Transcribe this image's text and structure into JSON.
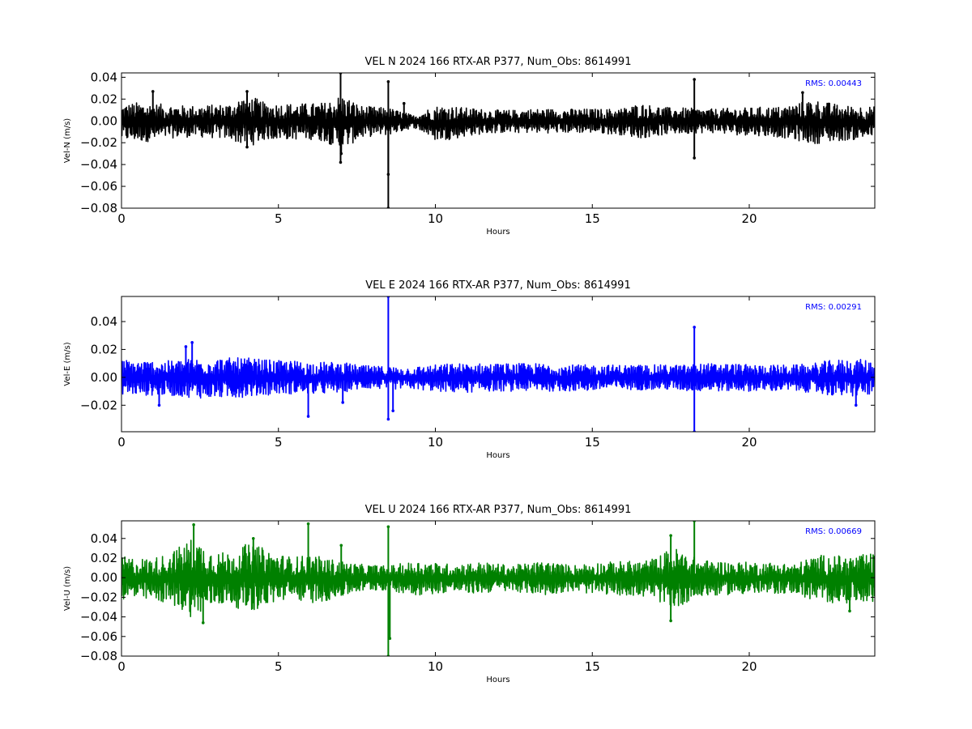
{
  "chart_data": [
    {
      "type": "line",
      "title": "VEL N 2024 166 RTX-AR  P377, Num_Obs: 8614991",
      "xlabel": "Hours",
      "ylabel": "Vel-N (m/s)",
      "color": "#000000",
      "xlim": [
        0,
        24
      ],
      "ylim": [
        -0.08,
        0.044
      ],
      "xticks": [
        0,
        5,
        10,
        15,
        20
      ],
      "xtick_labels": [
        "0",
        "5",
        "10",
        "15",
        "20"
      ],
      "yticks": [
        -0.08,
        -0.06,
        -0.04,
        -0.02,
        0.0,
        0.02,
        0.04
      ],
      "ytick_labels": [
        "−0.08",
        "−0.06",
        "−0.04",
        "−0.02",
        "0.00",
        "0.02",
        "0.04"
      ],
      "annotation": "RMS:  0.00443",
      "annotation_color": "#0000ff",
      "grid": false,
      "series": [
        {
          "color": "#000000",
          "envelope": {
            "x": [
              0,
              0.5,
              1,
              1.5,
              2,
              2.5,
              3,
              3.5,
              3.8,
              4.2,
              4.6,
              5,
              5.5,
              6,
              6.5,
              7,
              7.3,
              7.6,
              8,
              8.5,
              9,
              9.3,
              9.5,
              10,
              10.5,
              11,
              11.5,
              12,
              12.5,
              13,
              13.5,
              14,
              14.5,
              15,
              15.5,
              16,
              16.5,
              17,
              17.5,
              18,
              18.5,
              19,
              19.5,
              20,
              20.5,
              21,
              21.5,
              22,
              22.5,
              23,
              23.5,
              24
            ],
            "upper": [
              0.015,
              0.017,
              0.016,
              0.015,
              0.014,
              0.014,
              0.015,
              0.016,
              0.022,
              0.022,
              0.016,
              0.016,
              0.016,
              0.016,
              0.017,
              0.024,
              0.02,
              0.014,
              0.013,
              0.012,
              0.008,
              0.005,
              0.008,
              0.014,
              0.014,
              0.012,
              0.011,
              0.01,
              0.01,
              0.011,
              0.011,
              0.011,
              0.011,
              0.011,
              0.011,
              0.012,
              0.016,
              0.014,
              0.012,
              0.012,
              0.011,
              0.011,
              0.012,
              0.012,
              0.013,
              0.013,
              0.016,
              0.02,
              0.017,
              0.014,
              0.014,
              0.013
            ],
            "lower": [
              -0.018,
              -0.019,
              -0.019,
              -0.016,
              -0.015,
              -0.015,
              -0.016,
              -0.017,
              -0.022,
              -0.022,
              -0.017,
              -0.017,
              -0.017,
              -0.017,
              -0.019,
              -0.027,
              -0.022,
              -0.016,
              -0.014,
              -0.013,
              -0.009,
              -0.006,
              -0.009,
              -0.018,
              -0.017,
              -0.014,
              -0.012,
              -0.011,
              -0.011,
              -0.011,
              -0.011,
              -0.011,
              -0.011,
              -0.011,
              -0.012,
              -0.013,
              -0.016,
              -0.014,
              -0.012,
              -0.012,
              -0.011,
              -0.011,
              -0.013,
              -0.013,
              -0.014,
              -0.015,
              -0.018,
              -0.021,
              -0.02,
              -0.018,
              -0.017,
              -0.015
            ]
          },
          "spikes": [
            {
              "x": 6.98,
              "y": 0.044
            },
            {
              "x": 6.98,
              "y": -0.038
            },
            {
              "x": 8.5,
              "y": 0.036
            },
            {
              "x": 8.5,
              "y": -0.049
            },
            {
              "x": 8.5,
              "y": -0.08
            },
            {
              "x": 9.0,
              "y": 0.016
            },
            {
              "x": 4.0,
              "y": 0.027
            },
            {
              "x": 4.0,
              "y": -0.024
            },
            {
              "x": 7.0,
              "y": -0.03
            },
            {
              "x": 18.25,
              "y": 0.038
            },
            {
              "x": 18.25,
              "y": -0.034
            },
            {
              "x": 21.7,
              "y": 0.026
            },
            {
              "x": 1.0,
              "y": 0.027
            }
          ]
        }
      ]
    },
    {
      "type": "line",
      "title": "VEL E 2024 166 RTX-AR  P377, Num_Obs: 8614991",
      "xlabel": "Hours",
      "ylabel": "Vel-E (m/s)",
      "color": "#0000ff",
      "xlim": [
        0,
        24
      ],
      "ylim": [
        -0.039,
        0.058
      ],
      "xticks": [
        0,
        5,
        10,
        15,
        20
      ],
      "xtick_labels": [
        "0",
        "5",
        "10",
        "15",
        "20"
      ],
      "yticks": [
        -0.02,
        0.0,
        0.02,
        0.04
      ],
      "ytick_labels": [
        "−0.02",
        "0.00",
        "0.02",
        "0.04"
      ],
      "annotation": "RMS:  0.00291",
      "annotation_color": "#0000ff",
      "grid": false,
      "series": [
        {
          "color": "#0000ff",
          "envelope": {
            "x": [
              0,
              0.5,
              1,
              1.5,
              2,
              2.5,
              3,
              3.5,
              4,
              4.5,
              5,
              5.5,
              6,
              6.5,
              7,
              7.5,
              8,
              8.5,
              9,
              9.5,
              10,
              10.5,
              11,
              11.5,
              12,
              12.5,
              13,
              13.5,
              14,
              14.5,
              15,
              15.5,
              16,
              16.5,
              17,
              17.5,
              18,
              18.5,
              19,
              19.5,
              20,
              20.5,
              21,
              21.5,
              22,
              22.5,
              23,
              23.5,
              24
            ],
            "upper": [
              0.013,
              0.012,
              0.012,
              0.012,
              0.013,
              0.014,
              0.014,
              0.014,
              0.014,
              0.013,
              0.012,
              0.012,
              0.011,
              0.011,
              0.011,
              0.009,
              0.008,
              0.008,
              0.007,
              0.008,
              0.009,
              0.01,
              0.01,
              0.01,
              0.01,
              0.01,
              0.01,
              0.01,
              0.009,
              0.009,
              0.009,
              0.009,
              0.009,
              0.009,
              0.009,
              0.009,
              0.009,
              0.01,
              0.01,
              0.01,
              0.009,
              0.009,
              0.009,
              0.009,
              0.01,
              0.012,
              0.013,
              0.013,
              0.012
            ],
            "lower": [
              -0.012,
              -0.013,
              -0.013,
              -0.013,
              -0.014,
              -0.015,
              -0.015,
              -0.015,
              -0.014,
              -0.013,
              -0.012,
              -0.012,
              -0.012,
              -0.012,
              -0.011,
              -0.009,
              -0.008,
              -0.009,
              -0.008,
              -0.009,
              -0.01,
              -0.011,
              -0.011,
              -0.01,
              -0.01,
              -0.01,
              -0.01,
              -0.01,
              -0.01,
              -0.01,
              -0.01,
              -0.009,
              -0.009,
              -0.009,
              -0.009,
              -0.009,
              -0.01,
              -0.01,
              -0.01,
              -0.01,
              -0.01,
              -0.01,
              -0.01,
              -0.01,
              -0.011,
              -0.013,
              -0.014,
              -0.014,
              -0.012
            ]
          },
          "spikes": [
            {
              "x": 8.5,
              "y": 0.058
            },
            {
              "x": 8.5,
              "y": -0.03
            },
            {
              "x": 8.65,
              "y": -0.024
            },
            {
              "x": 5.95,
              "y": -0.028
            },
            {
              "x": 2.25,
              "y": 0.025
            },
            {
              "x": 2.05,
              "y": 0.022
            },
            {
              "x": 18.25,
              "y": 0.036
            },
            {
              "x": 18.25,
              "y": -0.039
            },
            {
              "x": 1.2,
              "y": -0.02
            },
            {
              "x": 23.4,
              "y": -0.02
            },
            {
              "x": 7.05,
              "y": -0.018
            }
          ]
        }
      ]
    },
    {
      "type": "line",
      "title": "VEL U 2024 166 RTX-AR  P377, Num_Obs: 8614991",
      "xlabel": "Hours",
      "ylabel": "Vel-U (m/s)",
      "color": "#008000",
      "xlim": [
        0,
        24
      ],
      "ylim": [
        -0.08,
        0.058
      ],
      "xticks": [
        0,
        5,
        10,
        15,
        20
      ],
      "xtick_labels": [
        "0",
        "5",
        "10",
        "15",
        "20"
      ],
      "yticks": [
        -0.08,
        -0.06,
        -0.04,
        -0.02,
        0.0,
        0.02,
        0.04
      ],
      "ytick_labels": [
        "−0.08",
        "−0.06",
        "−0.04",
        "−0.02",
        "0.00",
        "0.02",
        "0.04"
      ],
      "annotation": "RMS:  0.00669",
      "annotation_color": "#0000ff",
      "grid": false,
      "series": [
        {
          "color": "#008000",
          "envelope": {
            "x": [
              0,
              0.5,
              1,
              1.5,
              2,
              2.3,
              2.6,
              3,
              3.5,
              3.9,
              4.3,
              4.7,
              5,
              5.5,
              6,
              6.5,
              7,
              7.5,
              8,
              8.5,
              9,
              9.5,
              10,
              10.5,
              11,
              11.5,
              12,
              12.5,
              13,
              13.5,
              14,
              14.5,
              15,
              15.5,
              16,
              16.5,
              17,
              17.4,
              17.7,
              18,
              18.5,
              19,
              19.5,
              20,
              20.5,
              21,
              21.5,
              22,
              22.5,
              23,
              23.5,
              24
            ],
            "upper": [
              0.022,
              0.02,
              0.02,
              0.025,
              0.035,
              0.042,
              0.034,
              0.026,
              0.026,
              0.034,
              0.033,
              0.028,
              0.024,
              0.021,
              0.024,
              0.02,
              0.017,
              0.014,
              0.013,
              0.012,
              0.015,
              0.017,
              0.015,
              0.014,
              0.015,
              0.016,
              0.014,
              0.013,
              0.015,
              0.017,
              0.014,
              0.013,
              0.016,
              0.016,
              0.017,
              0.017,
              0.02,
              0.028,
              0.03,
              0.024,
              0.018,
              0.017,
              0.016,
              0.016,
              0.016,
              0.015,
              0.014,
              0.022,
              0.024,
              0.022,
              0.023,
              0.025
            ],
            "lower": [
              -0.022,
              -0.023,
              -0.024,
              -0.026,
              -0.035,
              -0.042,
              -0.036,
              -0.028,
              -0.028,
              -0.034,
              -0.033,
              -0.028,
              -0.024,
              -0.022,
              -0.026,
              -0.024,
              -0.02,
              -0.015,
              -0.013,
              -0.013,
              -0.016,
              -0.018,
              -0.016,
              -0.015,
              -0.016,
              -0.016,
              -0.014,
              -0.014,
              -0.016,
              -0.018,
              -0.015,
              -0.014,
              -0.017,
              -0.017,
              -0.018,
              -0.019,
              -0.022,
              -0.03,
              -0.032,
              -0.025,
              -0.02,
              -0.018,
              -0.017,
              -0.017,
              -0.017,
              -0.016,
              -0.016,
              -0.024,
              -0.026,
              -0.026,
              -0.025,
              -0.024
            ]
          },
          "spikes": [
            {
              "x": 2.3,
              "y": 0.054
            },
            {
              "x": 2.6,
              "y": -0.046
            },
            {
              "x": 4.2,
              "y": 0.04
            },
            {
              "x": 5.95,
              "y": 0.055
            },
            {
              "x": 8.5,
              "y": 0.052
            },
            {
              "x": 8.5,
              "y": -0.08
            },
            {
              "x": 8.55,
              "y": -0.062
            },
            {
              "x": 18.25,
              "y": 0.058
            },
            {
              "x": 17.5,
              "y": 0.043
            },
            {
              "x": 17.5,
              "y": -0.044
            },
            {
              "x": 23.2,
              "y": -0.034
            },
            {
              "x": 7.0,
              "y": 0.033
            }
          ]
        }
      ]
    }
  ]
}
